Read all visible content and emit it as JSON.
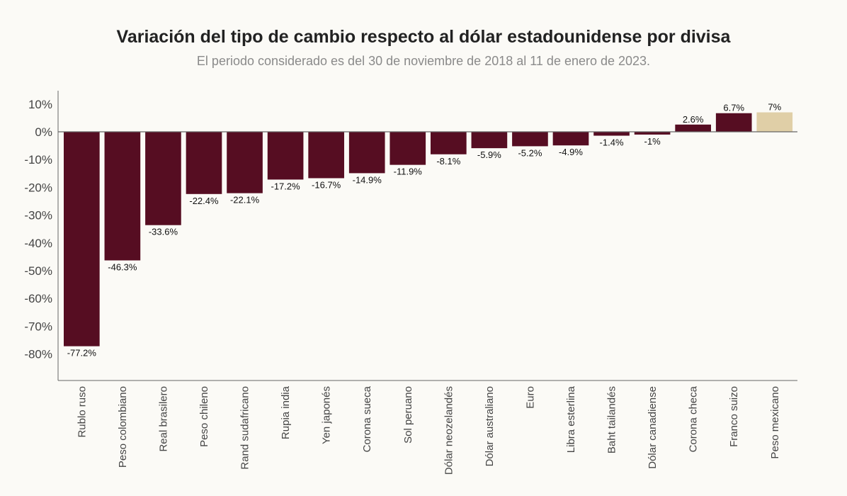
{
  "header": {
    "title": "Variación del tipo de cambio respecto al dólar estadounidense por divisa",
    "subtitle": "El periodo considerado es del 30 de noviembre de 2018 al 11 de enero de 2023."
  },
  "colors": {
    "bar": "#560d22",
    "highlight": "#e0cfa7",
    "axis": "#666666",
    "background": "#fbfaf6"
  },
  "chart_data": {
    "type": "bar",
    "title": "Variación del tipo de cambio respecto al dólar estadounidense por divisa",
    "subtitle": "El periodo considerado es del 30 de noviembre de 2018 al 11 de enero de 2023.",
    "xlabel": "",
    "ylabel": "",
    "ylim": [
      -90,
      13
    ],
    "yticks": [
      10,
      0,
      -10,
      -20,
      -30,
      -40,
      -50,
      -60,
      -70,
      -80
    ],
    "ytick_labels": [
      "10%",
      "0%",
      "-10%",
      "-20%",
      "-30%",
      "-40%",
      "-50%",
      "-60%",
      "-70%",
      "-80%"
    ],
    "grid": false,
    "categories": [
      "Rublo ruso",
      "Peso colombiano",
      "Real brasilero",
      "Peso chileno",
      "Rand sudafricano",
      "Rupia india",
      "Yen japonés",
      "Corona sueca",
      "Sol peruano",
      "Dólar neozelandés",
      "Dólar australiano",
      "Euro",
      "Libra esterlina",
      "Baht tailandés",
      "Dólar canadiense",
      "Corona checa",
      "Franco suizo",
      "Peso mexicano"
    ],
    "values": [
      -77.2,
      -46.3,
      -33.6,
      -22.4,
      -22.1,
      -17.2,
      -16.7,
      -14.9,
      -11.9,
      -8.1,
      -5.9,
      -5.2,
      -4.9,
      -1.4,
      -1,
      2.6,
      6.7,
      7
    ],
    "data_labels": [
      "-77.2%",
      "-46.3%",
      "-33.6%",
      "-22.4%",
      "-22.1%",
      "-17.2%",
      "-16.7%",
      "-14.9%",
      "-11.9%",
      "-8.1%",
      "-5.9%",
      "-5.2%",
      "-4.9%",
      "-1.4%",
      "-1%",
      "2.6%",
      "6.7%",
      "7%"
    ],
    "highlighted": [
      "Peso mexicano"
    ]
  }
}
